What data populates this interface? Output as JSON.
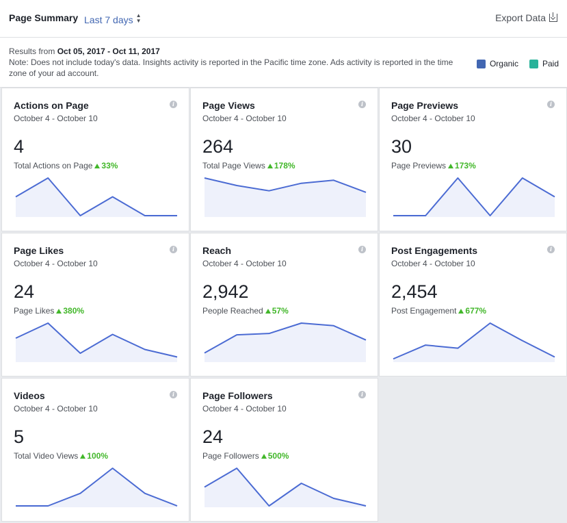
{
  "header": {
    "title": "Page Summary",
    "range_label": "Last 7 days",
    "export_label": "Export Data"
  },
  "info": {
    "results_prefix": "Results from ",
    "results_range": "Oct 05, 2017 - Oct 11, 2017",
    "note": "Note: Does not include today's data. Insights activity is reported in the Pacific time zone. Ads activity is reported in the time zone of your ad account."
  },
  "legend": [
    {
      "label": "Organic",
      "color": "#4267b2"
    },
    {
      "label": "Paid",
      "color": "#29b29a"
    }
  ],
  "colors": {
    "line": "#4b6bd3",
    "fill": "#eef1fb",
    "positive": "#42b72a"
  },
  "cards": [
    {
      "title": "Actions on Page",
      "date": "October 4 - October 10",
      "value": "4",
      "sub": "Total Actions on Page",
      "change": "33%",
      "spark": [
        2,
        4,
        0,
        2,
        0,
        0
      ]
    },
    {
      "title": "Page Views",
      "date": "October 4 - October 10",
      "value": "264",
      "sub": "Total Page Views",
      "change": "178%",
      "spark": [
        50,
        40,
        33,
        43,
        47,
        31
      ]
    },
    {
      "title": "Page Previews",
      "date": "October 4 - October 10",
      "value": "30",
      "sub": "Page Previews",
      "change": "173%",
      "spark": [
        0,
        0,
        10,
        0,
        10,
        5
      ]
    },
    {
      "title": "Page Likes",
      "date": "October 4 - October 10",
      "value": "24",
      "sub": "Page Likes",
      "change": "380%",
      "spark": [
        6,
        10,
        2,
        7,
        3,
        1
      ]
    },
    {
      "title": "Reach",
      "date": "October 4 - October 10",
      "value": "2,942",
      "sub": "People Reached",
      "change": "57%",
      "spark": [
        120,
        400,
        420,
        580,
        540,
        320
      ]
    },
    {
      "title": "Post Engagements",
      "date": "October 4 - October 10",
      "value": "2,454",
      "sub": "Post Engagement",
      "change": "677%",
      "spark": [
        30,
        250,
        200,
        600,
        320,
        60
      ]
    },
    {
      "title": "Videos",
      "date": "October 4 - October 10",
      "value": "5",
      "sub": "Total Video Views",
      "change": "100%",
      "spark": [
        0,
        0,
        1,
        3,
        1,
        0
      ]
    },
    {
      "title": "Page Followers",
      "date": "October 4 - October 10",
      "value": "24",
      "sub": "Page Followers",
      "change": "500%",
      "spark": [
        5,
        10,
        0,
        6,
        2,
        0
      ]
    }
  ]
}
